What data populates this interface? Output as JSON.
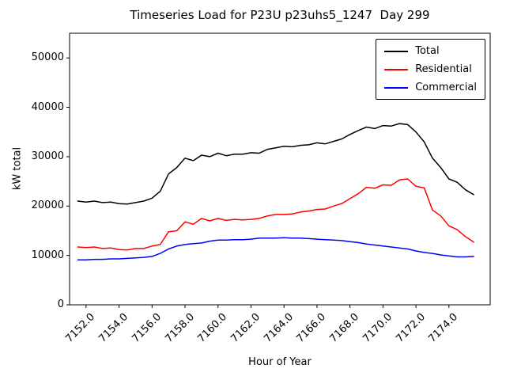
{
  "chart_data": {
    "type": "line",
    "title": "Timeseries Load for P23U p23uhs5_1247  Day 299",
    "xlabel": "Hour of Year",
    "ylabel": "kW total",
    "xlim": [
      7151.0,
      7176.5
    ],
    "ylim": [
      0,
      55000
    ],
    "grid": false,
    "legend_position": "top-right",
    "xticks": [
      {
        "value": 7152,
        "label": "7152.0"
      },
      {
        "value": 7154,
        "label": "7154.0"
      },
      {
        "value": 7156,
        "label": "7156.0"
      },
      {
        "value": 7158,
        "label": "7158.0"
      },
      {
        "value": 7160,
        "label": "7160.0"
      },
      {
        "value": 7162,
        "label": "7162.0"
      },
      {
        "value": 7164,
        "label": "7164.0"
      },
      {
        "value": 7166,
        "label": "7166.0"
      },
      {
        "value": 7168,
        "label": "7168.0"
      },
      {
        "value": 7170,
        "label": "7170.0"
      },
      {
        "value": 7172,
        "label": "7172.0"
      },
      {
        "value": 7174,
        "label": "7174.0"
      }
    ],
    "yticks": [
      {
        "value": 0,
        "label": "0"
      },
      {
        "value": 10000,
        "label": "10000"
      },
      {
        "value": 20000,
        "label": "20000"
      },
      {
        "value": 30000,
        "label": "30000"
      },
      {
        "value": 40000,
        "label": "40000"
      },
      {
        "value": 50000,
        "label": "50000"
      }
    ],
    "x": [
      7151.5,
      7152,
      7152.5,
      7153,
      7153.5,
      7154,
      7154.5,
      7155,
      7155.5,
      7156,
      7156.5,
      7157,
      7157.5,
      7158,
      7158.5,
      7159,
      7159.5,
      7160,
      7160.5,
      7161,
      7161.5,
      7162,
      7162.5,
      7163,
      7163.5,
      7164,
      7164.5,
      7165,
      7165.5,
      7166,
      7166.5,
      7167,
      7167.5,
      7168,
      7168.5,
      7169,
      7169.5,
      7170,
      7170.5,
      7171,
      7171.5,
      7172,
      7172.5,
      7173,
      7173.5,
      7174,
      7174.5,
      7175,
      7175.5
    ],
    "series": [
      {
        "name": "Total",
        "color": "#000000",
        "values": [
          21000,
          20800,
          21000,
          20700,
          20800,
          20500,
          20400,
          20700,
          21000,
          21600,
          23000,
          26500,
          27800,
          29700,
          29200,
          30300,
          30000,
          30700,
          30200,
          30500,
          30500,
          30800,
          30700,
          31500,
          31800,
          32100,
          32000,
          32300,
          32400,
          32800,
          32600,
          33100,
          33600,
          34500,
          35300,
          36000,
          35700,
          36300,
          36200,
          36700,
          36500,
          35000,
          33000,
          29700,
          27800,
          25500,
          24800,
          23300,
          22300
        ]
      },
      {
        "name": "Residential",
        "color": "#ff0000",
        "values": [
          11700,
          11600,
          11700,
          11400,
          11500,
          11200,
          11100,
          11400,
          11400,
          11900,
          12200,
          14800,
          15000,
          16800,
          16300,
          17500,
          17000,
          17500,
          17100,
          17300,
          17200,
          17300,
          17500,
          18000,
          18300,
          18300,
          18400,
          18800,
          19000,
          19300,
          19400,
          20000,
          20500,
          21500,
          22500,
          23800,
          23600,
          24300,
          24200,
          25300,
          25500,
          24000,
          23700,
          19200,
          18000,
          16000,
          15200,
          13800,
          12700
        ]
      },
      {
        "name": "Commercial",
        "color": "#0000ff",
        "values": [
          9100,
          9100,
          9200,
          9200,
          9300,
          9300,
          9400,
          9500,
          9600,
          9800,
          10400,
          11300,
          11900,
          12200,
          12400,
          12500,
          12900,
          13100,
          13100,
          13200,
          13200,
          13300,
          13500,
          13500,
          13500,
          13600,
          13500,
          13500,
          13400,
          13300,
          13200,
          13100,
          13000,
          12800,
          12600,
          12300,
          12100,
          11900,
          11700,
          11500,
          11300,
          10900,
          10600,
          10400,
          10100,
          9900,
          9700,
          9700,
          9800
        ]
      }
    ]
  }
}
